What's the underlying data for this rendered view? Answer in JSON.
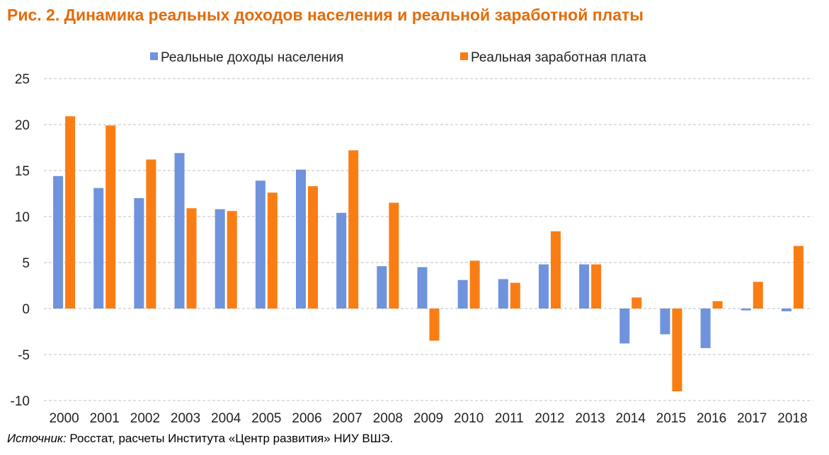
{
  "title": "Рис. 2. Динамика реальных доходов населения и реальной заработной платы",
  "source": {
    "label": "Источник:",
    "text": " Росстат, расчеты Института «Центр развития» НИУ ВШЭ."
  },
  "colors": {
    "series1": "#6f93dc",
    "series2": "#fa7d14",
    "title": "#e36c09",
    "grid": "#bfbfbf"
  },
  "chart_data": {
    "type": "bar",
    "title": "",
    "xlabel": "",
    "ylabel": "",
    "ylim": [
      -10,
      25
    ],
    "yticks": [
      25,
      20,
      15,
      10,
      5,
      0,
      -5,
      -10
    ],
    "grid": true,
    "legend_position": "top",
    "categories": [
      "2000",
      "2001",
      "2002",
      "2003",
      "2004",
      "2005",
      "2006",
      "2007",
      "2008",
      "2009",
      "2010",
      "2011",
      "2012",
      "2013",
      "2014",
      "2015",
      "2016",
      "2017",
      "2018"
    ],
    "series": [
      {
        "name": "Реальные доходы населения",
        "values": [
          14.4,
          13.1,
          12.0,
          16.9,
          10.8,
          13.9,
          15.1,
          10.4,
          4.6,
          4.5,
          3.1,
          3.2,
          4.8,
          4.8,
          -3.8,
          -2.8,
          -4.3,
          -0.2,
          -0.3
        ]
      },
      {
        "name": "Реальная заработная плата",
        "values": [
          20.9,
          19.9,
          16.2,
          10.9,
          10.6,
          12.6,
          13.3,
          17.2,
          11.5,
          -3.5,
          5.2,
          2.8,
          8.4,
          4.8,
          1.2,
          -9.0,
          0.8,
          2.9,
          6.8
        ]
      }
    ]
  }
}
